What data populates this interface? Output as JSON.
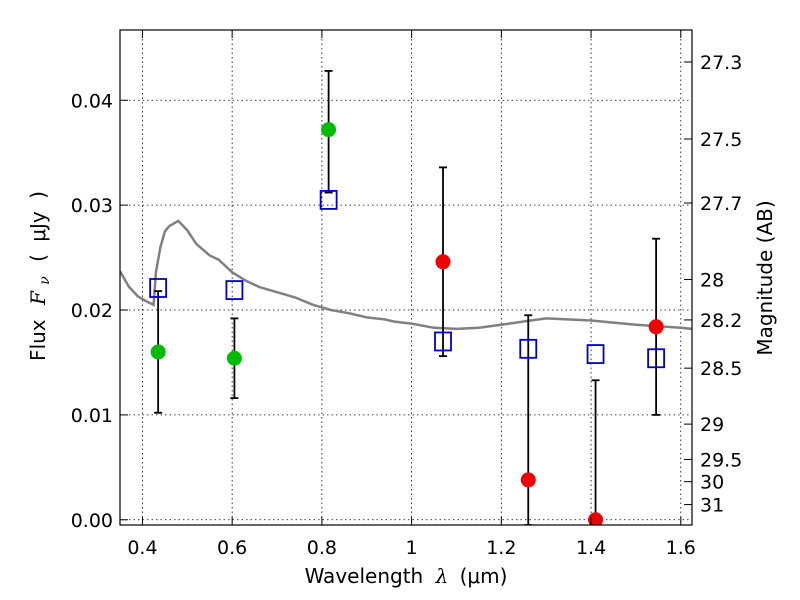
{
  "chart_data": {
    "type": "scatter",
    "title": "",
    "xlabel": "Wavelength",
    "xlabel_symbol": "λ",
    "xlabel_unit": "(μm)",
    "ylabel": "Flux",
    "ylabel_symbol": "F",
    "ylabel_subscript": "ν",
    "ylabel_unit_open": "(",
    "ylabel_unit": "μJy",
    "ylabel_unit_close": ")",
    "y2label": "Magnitude (AB)",
    "xlim": [
      0.35,
      1.625
    ],
    "ylim": [
      -0.0005,
      0.0467
    ],
    "x_ticks": [
      0.4,
      0.6,
      0.8,
      1.0,
      1.2,
      1.4,
      1.6
    ],
    "x_tick_labels": [
      "0.4",
      "0.6",
      "0.8",
      "1",
      "1.2",
      "1.4",
      "1.6"
    ],
    "y_ticks": [
      0.0,
      0.01,
      0.02,
      0.03,
      0.04
    ],
    "y_tick_labels": [
      "0.00",
      "0.01",
      "0.02",
      "0.03",
      "0.04"
    ],
    "mag_ticks": [
      27.3,
      27.5,
      27.7,
      28,
      28.2,
      28.5,
      29,
      29.5,
      30,
      31
    ],
    "mag_tick_labels": [
      "27.3",
      "27.5",
      "27.7",
      "28",
      "28.2",
      "28.5",
      "29",
      "29.5",
      "30",
      "31"
    ],
    "grid": true,
    "colors": {
      "model": "#808080",
      "detection": "#00bb00",
      "measurement": "#ee0000",
      "model_photometry": "#0000cc",
      "errorbar": "#000000"
    },
    "series": [
      {
        "kind": "model-spectrum",
        "x": [
          0.35,
          0.37,
          0.39,
          0.41,
          0.425,
          0.43,
          0.44,
          0.45,
          0.46,
          0.48,
          0.5,
          0.52,
          0.55,
          0.57,
          0.6,
          0.63,
          0.66,
          0.7,
          0.74,
          0.78,
          0.82,
          0.86,
          0.9,
          0.94,
          0.96,
          0.98,
          1.0,
          1.05,
          1.1,
          1.15,
          1.2,
          1.25,
          1.3,
          1.4,
          1.5,
          1.6,
          1.625
        ],
        "y": [
          0.0237,
          0.0222,
          0.0213,
          0.0208,
          0.0205,
          0.0236,
          0.026,
          0.0275,
          0.028,
          0.0285,
          0.0276,
          0.0263,
          0.0252,
          0.0248,
          0.0236,
          0.0228,
          0.0222,
          0.0217,
          0.0212,
          0.0205,
          0.02,
          0.0197,
          0.0193,
          0.0191,
          0.0189,
          0.0188,
          0.0187,
          0.0183,
          0.0182,
          0.0183,
          0.0186,
          0.0189,
          0.0192,
          0.019,
          0.0186,
          0.0183,
          0.0182
        ]
      },
      {
        "kind": "model-photometry",
        "x": [
          0.435,
          0.605,
          0.815,
          1.07,
          1.26,
          1.41,
          1.545
        ],
        "y": [
          0.0221,
          0.0219,
          0.0305,
          0.017,
          0.0163,
          0.0158,
          0.0154
        ]
      },
      {
        "kind": "detection",
        "x": [
          0.435,
          0.605,
          0.815
        ],
        "y": [
          0.016,
          0.0154,
          0.0372
        ],
        "yerr_low": [
          0.0058,
          0.0038,
          0.006
        ],
        "yerr_high": [
          0.0058,
          0.0038,
          0.0056
        ]
      },
      {
        "kind": "measurement",
        "x": [
          1.07,
          1.26,
          1.41,
          1.545
        ],
        "y": [
          0.0246,
          0.0038,
          0.0,
          0.0184
        ],
        "yerr_low": [
          0.009,
          0.0043,
          0.0005,
          0.0084
        ],
        "yerr_high": [
          0.009,
          0.0157,
          0.0133,
          0.0084
        ]
      }
    ]
  }
}
